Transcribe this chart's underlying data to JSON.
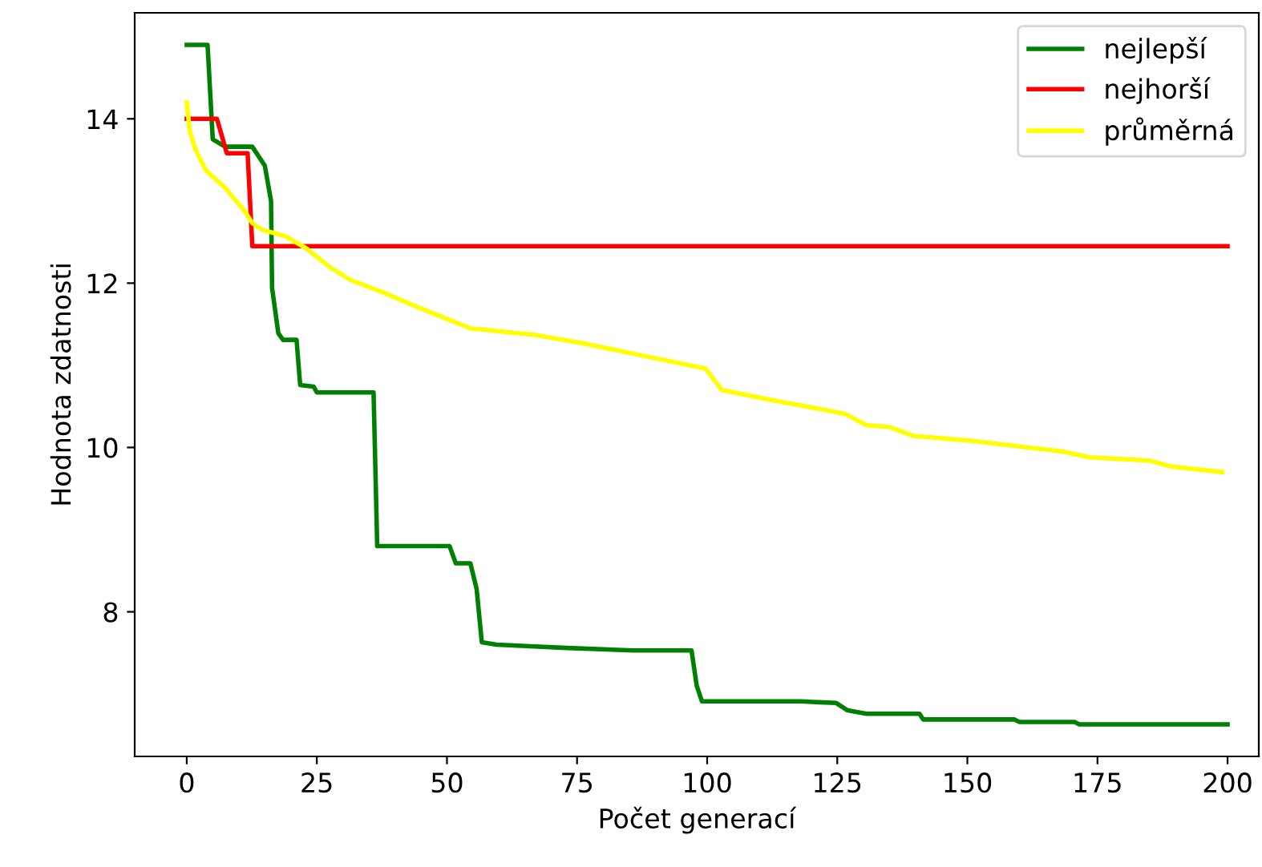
{
  "chart_data": {
    "type": "line",
    "xlabel": "Počet generací",
    "ylabel": "Hodnota zdatnosti",
    "xlim": [
      -10,
      206
    ],
    "ylim": [
      6.24,
      15.29
    ],
    "xticks": [
      0,
      25,
      50,
      75,
      100,
      125,
      150,
      175,
      200
    ],
    "yticks": [
      8,
      10,
      12,
      14
    ],
    "grid": false,
    "legend": "top right",
    "series": [
      {
        "name": "nejlepší",
        "color": "#008000",
        "x": [
          0,
          4,
          5,
          7.4,
          12.6,
          15,
          16.2,
          16.4,
          17.6,
          18.5,
          21.1,
          21.8,
          24.4,
          25,
          35.9,
          36.6,
          50.5,
          51.7,
          54.5,
          55.7,
          56.7,
          59.5,
          66,
          73,
          86,
          97,
          98,
          99,
          118,
          124.8,
          127,
          130.6,
          140.8,
          141.5,
          159,
          160,
          170.6,
          171.5,
          200
        ],
        "values": [
          14.9,
          14.9,
          13.75,
          13.66,
          13.66,
          13.43,
          13.0,
          11.94,
          11.39,
          11.31,
          11.31,
          10.76,
          10.74,
          10.67,
          10.67,
          8.8,
          8.8,
          8.59,
          8.59,
          8.28,
          7.63,
          7.6,
          7.58,
          7.56,
          7.53,
          7.53,
          7.1,
          6.91,
          6.91,
          6.89,
          6.8,
          6.76,
          6.76,
          6.69,
          6.69,
          6.66,
          6.66,
          6.63,
          6.63
        ]
      },
      {
        "name": "nejhorší",
        "color": "#ff0000",
        "x": [
          0,
          5.8,
          7.7,
          11.7,
          12.6,
          200
        ],
        "values": [
          14.0,
          14.0,
          13.58,
          13.58,
          12.45,
          12.45
        ]
      },
      {
        "name": "průměrná",
        "color": "#ffff00",
        "x": [
          0,
          0.6,
          1.8,
          3.7,
          5.8,
          7.4,
          9.2,
          11.1,
          12.6,
          14.5,
          19,
          22.8,
          27.4,
          31.4,
          38,
          44.3,
          54.5,
          66.9,
          76,
          87.4,
          99.7,
          102.8,
          113,
          126.5,
          130.6,
          135,
          139.7,
          151,
          168.3,
          173.5,
          185,
          189,
          199
        ],
        "values": [
          14.2,
          13.84,
          13.61,
          13.37,
          13.25,
          13.16,
          13.02,
          12.88,
          12.73,
          12.65,
          12.57,
          12.43,
          12.2,
          12.04,
          11.88,
          11.71,
          11.45,
          11.37,
          11.27,
          11.12,
          10.96,
          10.7,
          10.57,
          10.41,
          10.27,
          10.25,
          10.14,
          10.08,
          9.95,
          9.88,
          9.84,
          9.77,
          9.7
        ]
      }
    ]
  }
}
